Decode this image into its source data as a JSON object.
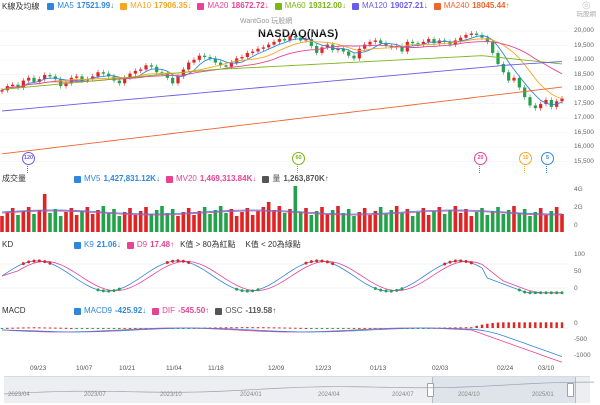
{
  "header": {
    "title": "K線及均線",
    "watermark": "WantGoo 玩股網",
    "symbol": "NASDAQ(NAS)",
    "logo": "玩股網",
    "ma": [
      {
        "label": "MA5",
        "value": "17521.99↓",
        "color": "#2e86de"
      },
      {
        "label": "MA10",
        "value": "17906.35↓",
        "color": "#f5a623"
      },
      {
        "label": "MA20",
        "value": "18672.72↓",
        "color": "#e84393"
      },
      {
        "label": "MA60",
        "value": "19312.00↓",
        "color": "#7cb518"
      },
      {
        "label": "MA120",
        "value": "19027.21↓",
        "color": "#6c5ce7"
      },
      {
        "label": "MA240",
        "value": "18045.44↑",
        "color": "#f0642d"
      }
    ]
  },
  "price_axis": [
    "20,000",
    "19,500",
    "19,000",
    "18,500",
    "18,000",
    "17,500",
    "17,000",
    "16,500",
    "16,000",
    "15,500"
  ],
  "markers": [
    {
      "label": "120",
      "color": "#6c5ce7"
    },
    {
      "label": "60",
      "color": "#7cb518"
    },
    {
      "label": "20",
      "color": "#e84393"
    },
    {
      "label": "10",
      "color": "#f5a623"
    },
    {
      "label": "5",
      "color": "#2e86de"
    }
  ],
  "volume": {
    "title": "成交量",
    "items": [
      {
        "label": "MV5",
        "value": "1,427,831.12K↓",
        "color": "#2e86de"
      },
      {
        "label": "MV20",
        "value": "1,469,313.84K↓",
        "color": "#e84393"
      },
      {
        "label": "量",
        "value": "1,263,870K↑",
        "color": "#555555"
      }
    ],
    "axis": [
      "4G",
      "2G",
      "0"
    ]
  },
  "kd": {
    "title": "KD",
    "items": [
      {
        "label": "K9",
        "value": "21.06↓",
        "color": "#2e86de"
      },
      {
        "label": "D9",
        "value": "17.48↑",
        "color": "#e84393"
      }
    ],
    "notes": [
      "K值 > 80為紅點",
      "K值 < 20為綠點"
    ],
    "axis": [
      "100",
      "50",
      "0"
    ]
  },
  "macd": {
    "title": "MACD",
    "items": [
      {
        "label": "MACD9",
        "value": "-425.92↓",
        "color": "#2e86de"
      },
      {
        "label": "DIF",
        "value": "-545.50↑",
        "color": "#e84393"
      },
      {
        "label": "OSC",
        "value": "-119.58↑",
        "color": "#555555"
      }
    ],
    "axis": [
      "0",
      "-500",
      "-1000"
    ]
  },
  "dates": [
    "09/23",
    "10/07",
    "10/21",
    "11/04",
    "11/18",
    "12/09",
    "12/23",
    "01/13",
    "02/03",
    "02/24",
    "03/10"
  ],
  "navigator": [
    "2023/04",
    "2023/07",
    "2023/10",
    "2024/01",
    "2024/04",
    "2024/07",
    "2024/10",
    "2025/01"
  ],
  "chart_data": {
    "type": "line",
    "close": [
      17950,
      18100,
      18150,
      18050,
      18300,
      18400,
      18250,
      18350,
      18500,
      18450,
      18350,
      18100,
      18200,
      18400,
      18450,
      18300,
      18350,
      18450,
      18600,
      18550,
      18450,
      18300,
      18200,
      18400,
      18550,
      18650,
      18700,
      18850,
      18800,
      18600,
      18550,
      18400,
      18200,
      18450,
      18700,
      18950,
      19050,
      19200,
      19150,
      19100,
      18950,
      18850,
      18800,
      18950,
      19100,
      19150,
      19300,
      19350,
      19450,
      19500,
      19600,
      19700,
      19800,
      19750,
      19900,
      19850,
      19750,
      19800,
      19550,
      19300,
      19500,
      19600,
      19400,
      19450,
      19350,
      19200,
      19100,
      19450,
      19600,
      19700,
      19750,
      19650,
      19550,
      19500,
      19550,
      19350,
      19700,
      19650,
      19600,
      19700,
      19800,
      19650,
      19750,
      19700,
      19600,
      19750,
      19850,
      19950,
      20000,
      19950,
      19850,
      19700,
      19300,
      18900,
      18600,
      18300,
      18400,
      18050,
      17700,
      17400,
      17300,
      17450,
      17600,
      17350,
      17550,
      17650
    ]
  }
}
